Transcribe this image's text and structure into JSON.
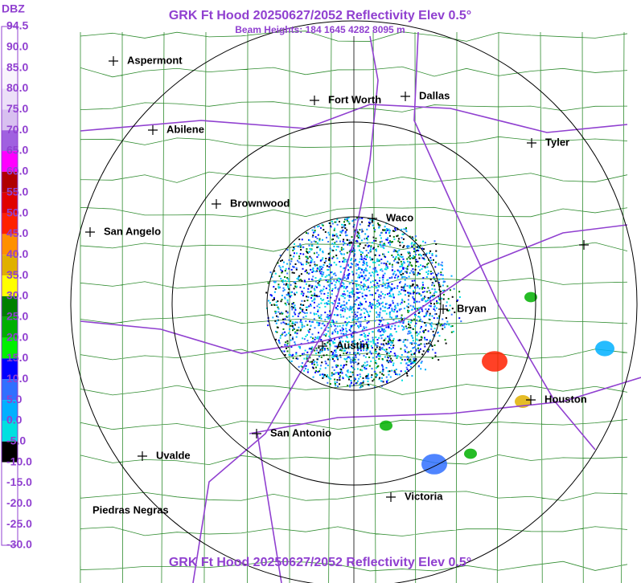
{
  "header": {
    "title": "GRK Ft Hood 20250627/2052 Reflectivity Elev 0.5°",
    "subtitle": "Beam Heights: 184 1645 4282 8095 m"
  },
  "footer": {
    "title": "GRK Ft Hood 20250627/2052 Reflectivity Elev 0.5°"
  },
  "legend": {
    "unit": "DBZ",
    "entries": [
      {
        "label": "94.5",
        "color": "#ffffff"
      },
      {
        "label": "90.0",
        "color": "#ffffff"
      },
      {
        "label": "85.0",
        "color": "#f8f4fc"
      },
      {
        "label": "80.0",
        "color": "#ece0f8"
      },
      {
        "label": "75.0",
        "color": "#d8c0f0"
      },
      {
        "label": "70.0",
        "color": "#a060e0"
      },
      {
        "label": "65.0",
        "color": "#ff00ff"
      },
      {
        "label": "60.0",
        "color": "#b00000"
      },
      {
        "label": "55.0",
        "color": "#e00000"
      },
      {
        "label": "50.0",
        "color": "#ff2000"
      },
      {
        "label": "45.0",
        "color": "#ff9000"
      },
      {
        "label": "40.0",
        "color": "#e0b000"
      },
      {
        "label": "35.0",
        "color": "#ffff00"
      },
      {
        "label": "30.0",
        "color": "#008000"
      },
      {
        "label": "25.0",
        "color": "#00b000"
      },
      {
        "label": "20.0",
        "color": "#00f000"
      },
      {
        "label": "15.0",
        "color": "#0000ff"
      },
      {
        "label": "10.0",
        "color": "#3070ff"
      },
      {
        "label": "5.0",
        "color": "#00b0ff"
      },
      {
        "label": "0.0",
        "color": "#00e0e0"
      },
      {
        "label": "-5.0",
        "color": "#000000"
      },
      {
        "label": "-10.0",
        "color": "#ffffff"
      },
      {
        "label": "-15.0",
        "color": "#ffffff"
      },
      {
        "label": "-20.0",
        "color": "#ffffff"
      },
      {
        "label": "-25.0",
        "color": "#ffffff"
      },
      {
        "label": "-30.0",
        "color": "#ffffff"
      }
    ]
  },
  "cities": [
    {
      "label": "Aspermont"
    },
    {
      "label": "Fort Worth"
    },
    {
      "label": "Dallas"
    },
    {
      "label": "Abilene"
    },
    {
      "label": "Tyler"
    },
    {
      "label": "Brownwood"
    },
    {
      "label": "Waco"
    },
    {
      "label": "San Angelo"
    },
    {
      "label": "Bryan"
    },
    {
      "label": "Austin"
    },
    {
      "label": "Houston"
    },
    {
      "label": "San Antonio"
    },
    {
      "label": "Uvalde"
    },
    {
      "label": "Victoria"
    },
    {
      "label": "Piedras Negras"
    }
  ]
}
